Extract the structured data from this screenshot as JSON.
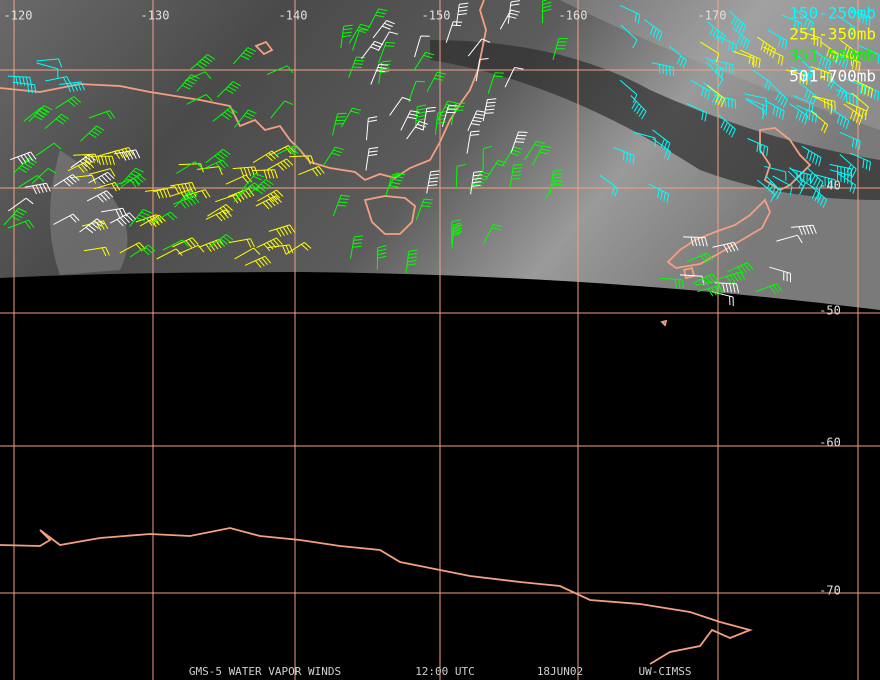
{
  "map": {
    "longitude_labels": [
      "-120",
      "-130",
      "-140",
      "-150",
      "-160",
      "-170"
    ],
    "latitude_labels": [
      "-40",
      "-50",
      "-60",
      "-70"
    ],
    "legend": [
      {
        "label": "150-250mb",
        "color": "#00ffff"
      },
      {
        "label": "251-350mb",
        "color": "#ffff00"
      },
      {
        "label": "351-500mb",
        "color": "#00ff00"
      },
      {
        "label": "501-700mb",
        "color": "#ffffff"
      }
    ],
    "footer": [
      "GMS-5 WATER VAPOR WINDS",
      "12:00 UTC",
      "18JUN02",
      "UW-CIMSS"
    ]
  }
}
